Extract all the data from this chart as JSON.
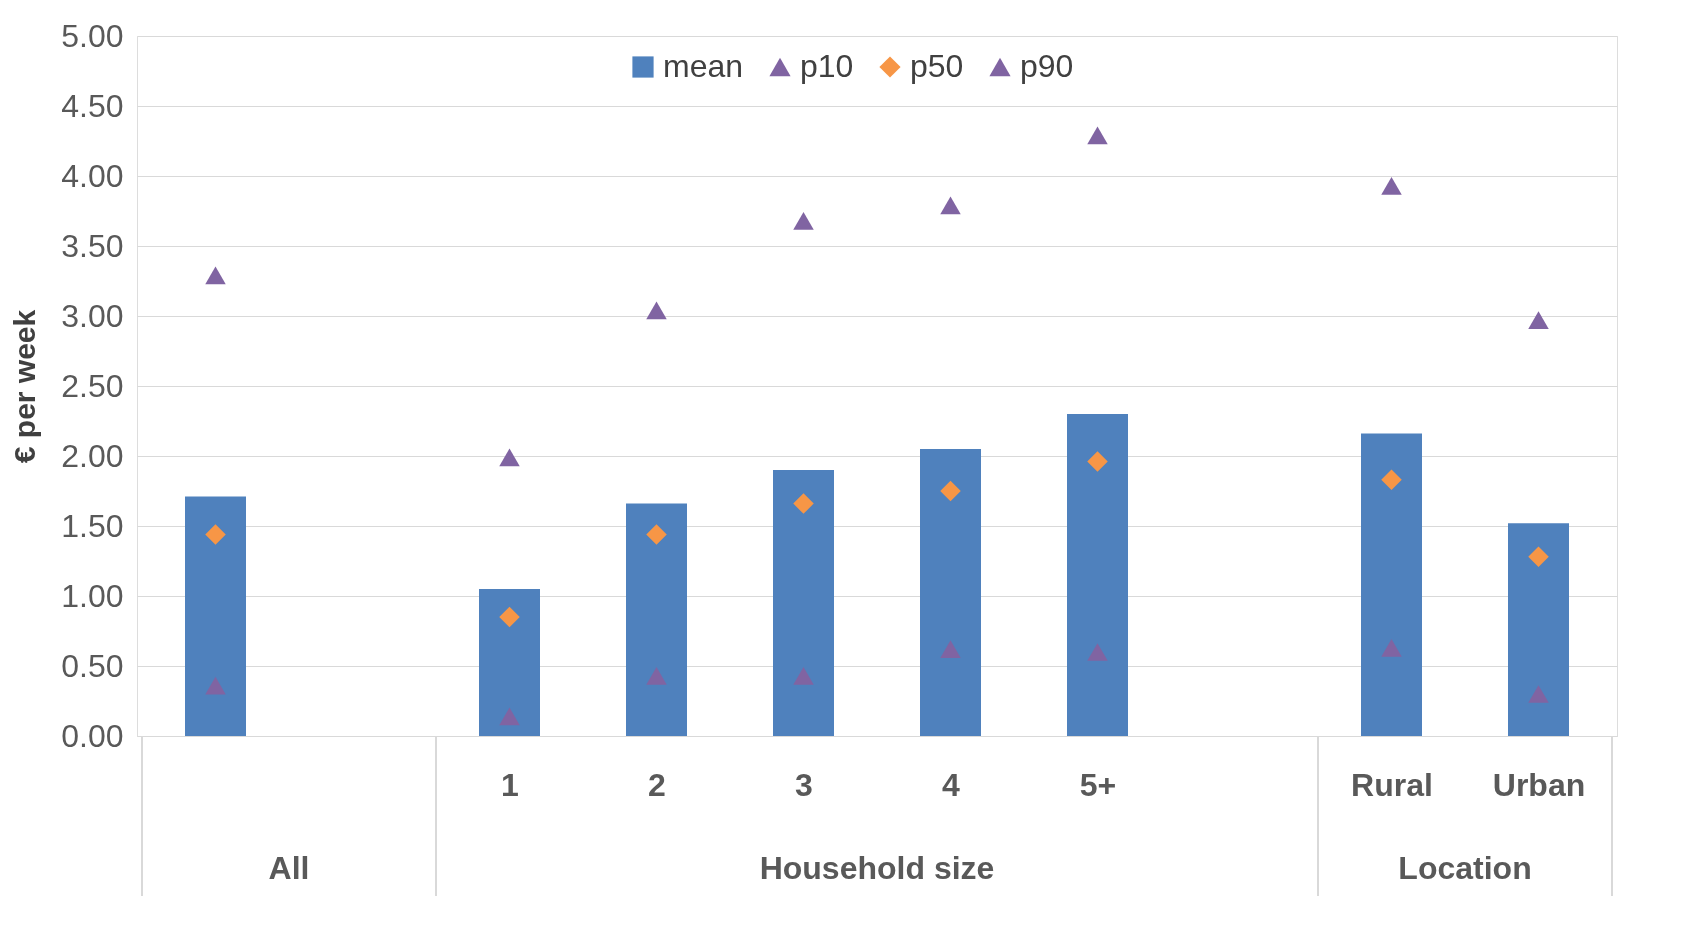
{
  "chart_data": {
    "type": "bar",
    "ylabel": "€ per week",
    "categories": [
      null,
      null,
      "1",
      "2",
      "3",
      "4",
      "5+",
      null,
      "Rural",
      "Urban"
    ],
    "series": [
      {
        "name": "mean",
        "color": "#4f81bd",
        "values": [
          1.71,
          null,
          1.05,
          1.66,
          1.9,
          2.05,
          2.3,
          null,
          2.16,
          1.52
        ]
      },
      {
        "name": "p10",
        "type": "scatter",
        "marker": "triangle",
        "color": "#8064a2",
        "values": [
          0.36,
          null,
          0.14,
          0.43,
          0.43,
          0.62,
          0.6,
          null,
          0.63,
          0.3
        ]
      },
      {
        "name": "p50",
        "type": "scatter",
        "marker": "diamond",
        "color": "#f79646",
        "values": [
          1.44,
          null,
          0.85,
          1.44,
          1.66,
          1.75,
          1.96,
          null,
          1.83,
          1.28
        ]
      },
      {
        "name": "p90",
        "type": "scatter",
        "marker": "triangle",
        "color": "#8064a2",
        "values": [
          3.29,
          null,
          1.99,
          3.04,
          3.68,
          3.79,
          4.29,
          null,
          3.93,
          2.97
        ]
      }
    ],
    "annotations": [
      "All",
      "Household size",
      "Location"
    ],
    "ylim": [
      0,
      5
    ],
    "yticks": [
      {
        "value": 0,
        "label": "0.00"
      },
      {
        "value": 0.5,
        "label": "0.50"
      },
      {
        "value": 1,
        "label": "1.00"
      },
      {
        "value": 1.5,
        "label": "1.50"
      },
      {
        "value": 2,
        "label": "2.00"
      },
      {
        "value": 2.5,
        "label": "2.50"
      },
      {
        "value": 3,
        "label": "3.00"
      },
      {
        "value": 3.5,
        "label": "3.50"
      },
      {
        "value": 4,
        "label": "4.00"
      },
      {
        "value": 4.5,
        "label": "4.50"
      },
      {
        "value": 5,
        "label": "5.00"
      }
    ],
    "grid": "y",
    "legend": "top"
  }
}
